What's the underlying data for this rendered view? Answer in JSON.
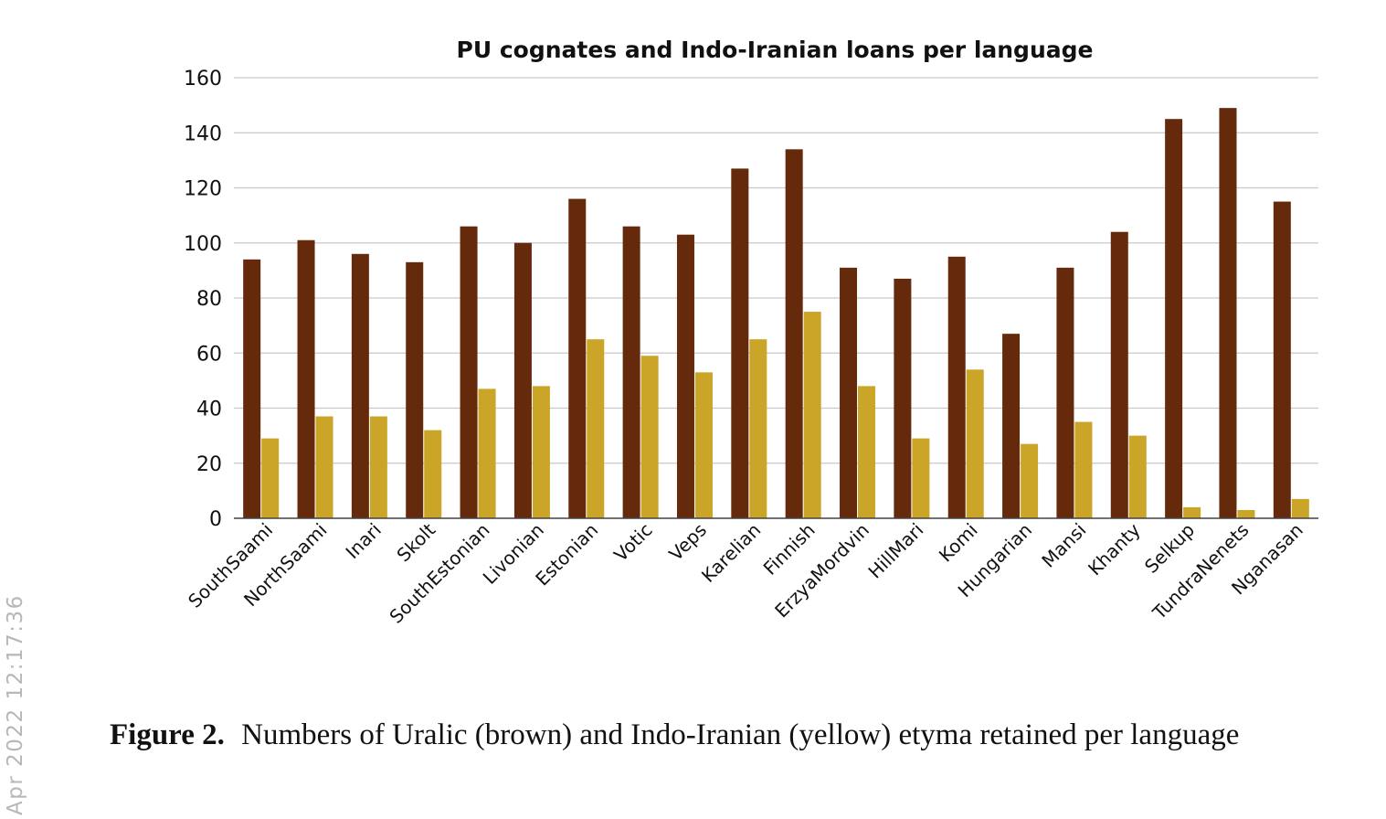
{
  "chart_data": {
    "type": "bar",
    "title": "PU cognates and Indo-Iranian loans per language",
    "xlabel": "",
    "ylabel": "",
    "ylim": [
      0,
      160
    ],
    "yticks": [
      0,
      20,
      40,
      60,
      80,
      100,
      120,
      140,
      160
    ],
    "grid": true,
    "categories": [
      "SouthSaami",
      "NorthSaami",
      "Inari",
      "Skolt",
      "SouthEstonian",
      "Livonian",
      "Estonian",
      "Votic",
      "Veps",
      "Karelian",
      "Finnish",
      "ErzyaMordvin",
      "HillMari",
      "Komi",
      "Hungarian",
      "Mansi",
      "Khanty",
      "Selkup",
      "TundraNenets",
      "Nganasan"
    ],
    "series": [
      {
        "color": "#652a0c",
        "values": [
          94,
          101,
          96,
          93,
          106,
          100,
          116,
          106,
          103,
          127,
          134,
          91,
          87,
          95,
          67,
          91,
          104,
          145,
          149,
          115
        ]
      },
      {
        "color": "#cba527",
        "values": [
          29,
          37,
          37,
          32,
          47,
          48,
          65,
          59,
          53,
          65,
          75,
          48,
          29,
          54,
          27,
          35,
          30,
          4,
          3,
          7
        ]
      }
    ]
  },
  "caption": {
    "label": "Figure 2.",
    "text": "Numbers of Uralic (brown) and Indo-Iranian (yellow) etyma retained per language"
  },
  "watermark": "Apr 2022 12:17:36"
}
